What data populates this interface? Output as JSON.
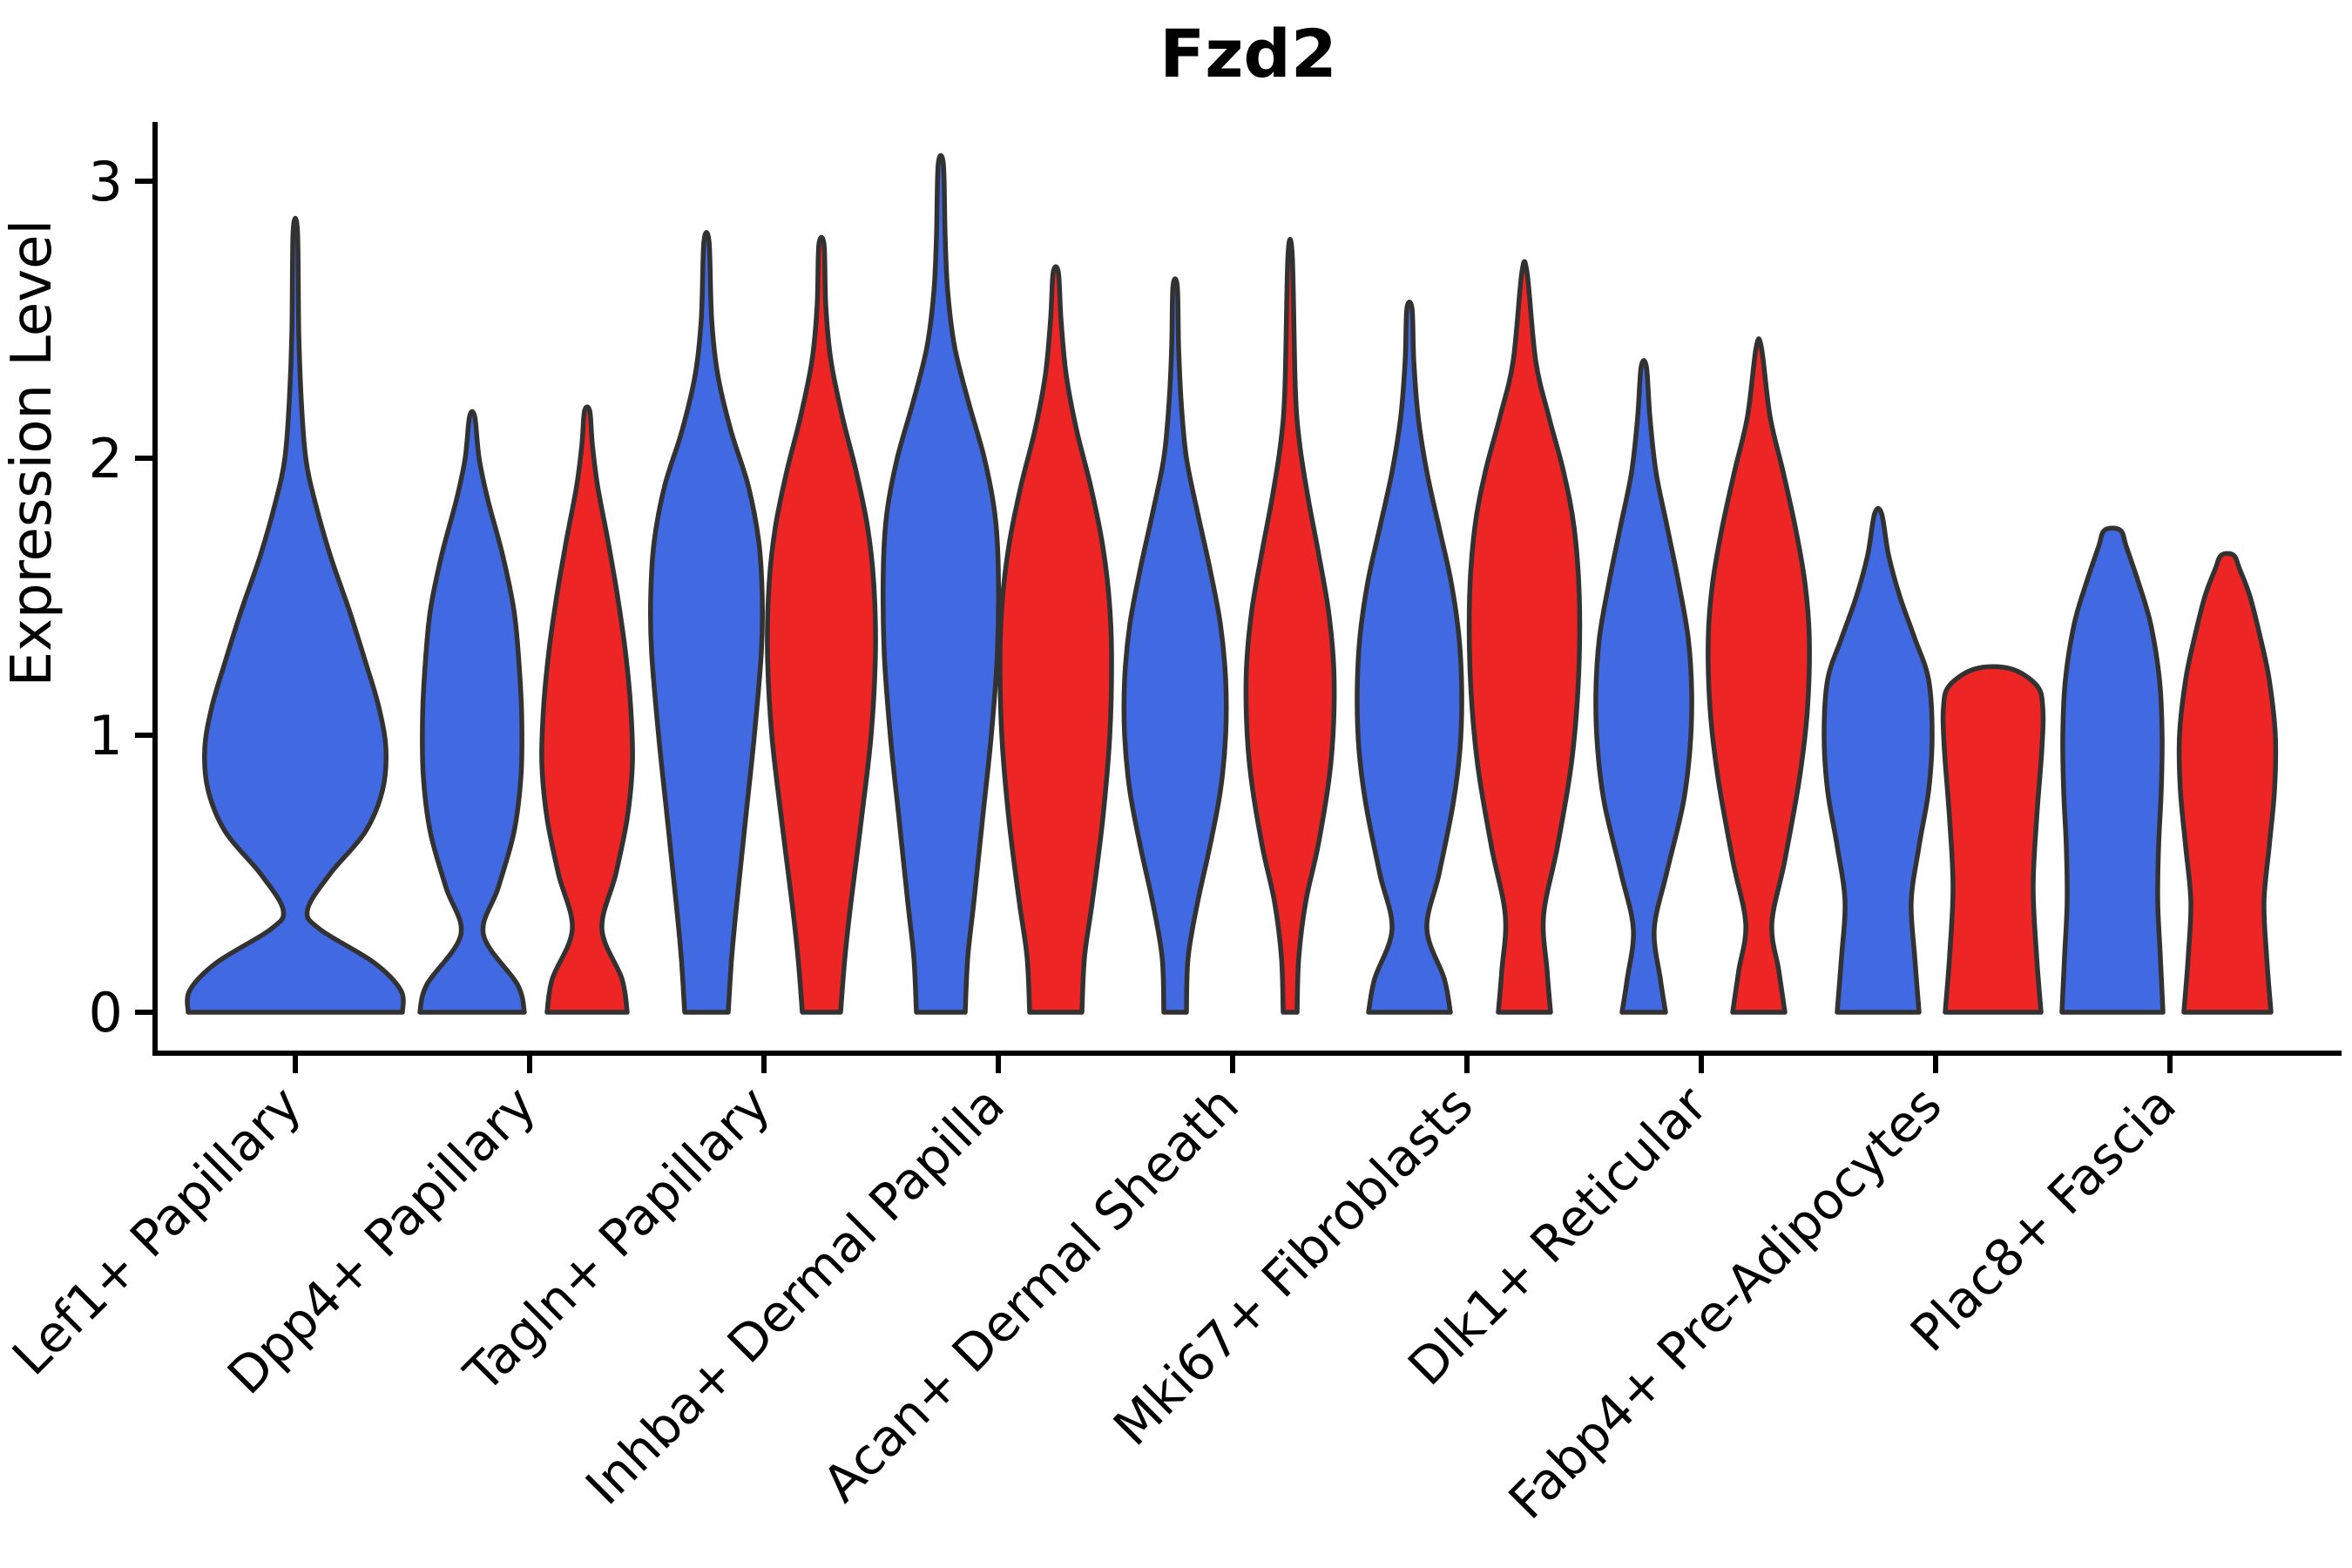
{
  "chart_data": {
    "type": "violin",
    "title": "Fzd2",
    "ylabel": "Expression Level",
    "xlabel": "",
    "ylim": [
      0,
      3.3
    ],
    "yticks": [
      0,
      1,
      2,
      3
    ],
    "y_tick_labels": [
      "0",
      "1",
      "2",
      "3"
    ],
    "x_tick_rotation_deg": 45,
    "grid": false,
    "legend": "none",
    "categories": [
      "Lef1+ Papillary",
      "Dpp4+ Papillary",
      "Tagln+ Papillary",
      "Inhba+ Dermal Papilla",
      "Acan+ Dermal Sheath",
      "Mki67+ Fibroblasts",
      "Dlk1+ Reticular",
      "Fabp4+ Pre-Adipocytes",
      "Plac8+ Fascia"
    ],
    "palette": {
      "blue": "#4169E1",
      "red": "#ED2524",
      "outline": "#323232"
    },
    "violins": [
      {
        "category_index": 0,
        "category": "Lef1+ Papillary",
        "color": "blue",
        "side": "center",
        "peak_expression": 2.82,
        "flat_top": false,
        "profile": [
          [
            0,
            123
          ],
          [
            0.08,
            121
          ],
          [
            0.18,
            90
          ],
          [
            0.3,
            28
          ],
          [
            0.37,
            14
          ],
          [
            0.5,
            40
          ],
          [
            0.65,
            80
          ],
          [
            0.8,
            100
          ],
          [
            0.95,
            104
          ],
          [
            1.1,
            96
          ],
          [
            1.25,
            82
          ],
          [
            1.45,
            62
          ],
          [
            1.65,
            40
          ],
          [
            1.85,
            22
          ],
          [
            2.0,
            12
          ],
          [
            2.2,
            7
          ],
          [
            2.45,
            4
          ],
          [
            2.82,
            2.5
          ]
        ]
      },
      {
        "category_index": 1,
        "category": "Dpp4+ Papillary",
        "color": "blue",
        "side": "left",
        "peak_expression": 2.15,
        "flat_top": false,
        "profile": [
          [
            0,
            60
          ],
          [
            0.1,
            52
          ],
          [
            0.28,
            13
          ],
          [
            0.45,
            30
          ],
          [
            0.65,
            48
          ],
          [
            0.85,
            56
          ],
          [
            1.05,
            57
          ],
          [
            1.25,
            54
          ],
          [
            1.45,
            48
          ],
          [
            1.65,
            35
          ],
          [
            1.85,
            18
          ],
          [
            2.0,
            8
          ],
          [
            2.15,
            3
          ]
        ]
      },
      {
        "category_index": 1,
        "category": "Dpp4+ Papillary",
        "color": "red",
        "side": "right",
        "peak_expression": 2.17,
        "flat_top": false,
        "profile": [
          [
            0,
            46
          ],
          [
            0.12,
            40
          ],
          [
            0.3,
            17
          ],
          [
            0.5,
            33
          ],
          [
            0.7,
            46
          ],
          [
            0.9,
            52
          ],
          [
            1.1,
            50
          ],
          [
            1.3,
            44
          ],
          [
            1.5,
            35
          ],
          [
            1.7,
            24
          ],
          [
            1.9,
            12
          ],
          [
            2.05,
            6
          ],
          [
            2.17,
            3
          ]
        ]
      },
      {
        "category_index": 2,
        "category": "Tagln+ Papillary",
        "color": "blue",
        "side": "left",
        "peak_expression": 2.78,
        "flat_top": false,
        "profile": [
          [
            0,
            25
          ],
          [
            0.2,
            29
          ],
          [
            0.4,
            35
          ],
          [
            0.7,
            45
          ],
          [
            1.0,
            55
          ],
          [
            1.3,
            63
          ],
          [
            1.5,
            64
          ],
          [
            1.7,
            60
          ],
          [
            1.9,
            48
          ],
          [
            2.1,
            28
          ],
          [
            2.3,
            13
          ],
          [
            2.5,
            6
          ],
          [
            2.78,
            3
          ]
        ]
      },
      {
        "category_index": 2,
        "category": "Tagln+ Papillary",
        "color": "red",
        "side": "right",
        "peak_expression": 2.77,
        "flat_top": false,
        "profile": [
          [
            0,
            22
          ],
          [
            0.2,
            27
          ],
          [
            0.4,
            34
          ],
          [
            0.7,
            46
          ],
          [
            1.0,
            57
          ],
          [
            1.3,
            62
          ],
          [
            1.55,
            60
          ],
          [
            1.75,
            53
          ],
          [
            1.95,
            40
          ],
          [
            2.15,
            24
          ],
          [
            2.35,
            11
          ],
          [
            2.55,
            5
          ],
          [
            2.77,
            3
          ]
        ]
      },
      {
        "category_index": 3,
        "category": "Inhba+ Dermal Papilla",
        "color": "blue",
        "side": "left",
        "peak_expression": 3.06,
        "flat_top": false,
        "profile": [
          [
            0,
            28
          ],
          [
            0.2,
            31
          ],
          [
            0.4,
            38
          ],
          [
            0.7,
            48
          ],
          [
            1.0,
            58
          ],
          [
            1.3,
            65
          ],
          [
            1.6,
            66
          ],
          [
            1.8,
            62
          ],
          [
            2.0,
            50
          ],
          [
            2.2,
            32
          ],
          [
            2.4,
            16
          ],
          [
            2.6,
            8
          ],
          [
            2.8,
            5
          ],
          [
            3.06,
            3
          ]
        ]
      },
      {
        "category_index": 3,
        "category": "Inhba+ Dermal Papilla",
        "color": "red",
        "side": "right",
        "peak_expression": 2.67,
        "flat_top": false,
        "profile": [
          [
            0,
            30
          ],
          [
            0.2,
            33
          ],
          [
            0.4,
            42
          ],
          [
            0.7,
            54
          ],
          [
            1.0,
            62
          ],
          [
            1.3,
            64
          ],
          [
            1.5,
            61
          ],
          [
            1.7,
            53
          ],
          [
            1.9,
            40
          ],
          [
            2.1,
            24
          ],
          [
            2.3,
            12
          ],
          [
            2.5,
            6
          ],
          [
            2.67,
            3
          ]
        ]
      },
      {
        "category_index": 4,
        "category": "Acan+ Dermal Sheath",
        "color": "blue",
        "side": "left",
        "peak_expression": 2.62,
        "flat_top": false,
        "profile": [
          [
            0,
            13
          ],
          [
            0.2,
            15
          ],
          [
            0.4,
            26
          ],
          [
            0.6,
            40
          ],
          [
            0.8,
            52
          ],
          [
            1.0,
            58
          ],
          [
            1.2,
            58
          ],
          [
            1.4,
            52
          ],
          [
            1.6,
            40
          ],
          [
            1.8,
            26
          ],
          [
            2.0,
            13
          ],
          [
            2.2,
            7
          ],
          [
            2.4,
            4
          ],
          [
            2.62,
            2.5
          ]
        ]
      },
      {
        "category_index": 4,
        "category": "Acan+ Dermal Sheath",
        "color": "red",
        "side": "right",
        "peak_expression": 2.73,
        "flat_top": false,
        "profile": [
          [
            0,
            8
          ],
          [
            0.2,
            10
          ],
          [
            0.4,
            18
          ],
          [
            0.6,
            32
          ],
          [
            0.85,
            45
          ],
          [
            1.05,
            50
          ],
          [
            1.25,
            50
          ],
          [
            1.45,
            44
          ],
          [
            1.65,
            33
          ],
          [
            1.85,
            21
          ],
          [
            2.05,
            11
          ],
          [
            2.25,
            6
          ],
          [
            2.73,
            2.5
          ]
        ]
      },
      {
        "category_index": 5,
        "category": "Mki67+ Fibroblasts",
        "color": "blue",
        "side": "left",
        "peak_expression": 2.54,
        "flat_top": false,
        "profile": [
          [
            0,
            47
          ],
          [
            0.12,
            40
          ],
          [
            0.3,
            20
          ],
          [
            0.5,
            34
          ],
          [
            0.75,
            50
          ],
          [
            0.95,
            58
          ],
          [
            1.15,
            60
          ],
          [
            1.35,
            57
          ],
          [
            1.55,
            48
          ],
          [
            1.75,
            34
          ],
          [
            1.95,
            20
          ],
          [
            2.15,
            10
          ],
          [
            2.35,
            5
          ],
          [
            2.54,
            3
          ]
        ]
      },
      {
        "category_index": 5,
        "category": "Mki67+ Fibroblasts",
        "color": "red",
        "side": "right",
        "peak_expression": 2.67,
        "flat_top": false,
        "profile": [
          [
            0,
            30
          ],
          [
            0.15,
            26
          ],
          [
            0.35,
            22
          ],
          [
            0.6,
            38
          ],
          [
            0.9,
            54
          ],
          [
            1.2,
            62
          ],
          [
            1.5,
            63
          ],
          [
            1.75,
            57
          ],
          [
            1.95,
            45
          ],
          [
            2.15,
            28
          ],
          [
            2.35,
            13
          ],
          [
            2.67,
            3
          ]
        ]
      },
      {
        "category_index": 6,
        "category": "Dlk1+ Reticular",
        "color": "blue",
        "side": "left",
        "peak_expression": 2.33,
        "flat_top": false,
        "profile": [
          [
            0,
            25
          ],
          [
            0.12,
            19
          ],
          [
            0.3,
            12
          ],
          [
            0.5,
            26
          ],
          [
            0.75,
            45
          ],
          [
            0.95,
            53
          ],
          [
            1.15,
            55
          ],
          [
            1.35,
            51
          ],
          [
            1.55,
            40
          ],
          [
            1.75,
            27
          ],
          [
            1.95,
            14
          ],
          [
            2.15,
            7
          ],
          [
            2.33,
            3
          ]
        ]
      },
      {
        "category_index": 6,
        "category": "Dlk1+ Reticular",
        "color": "red",
        "side": "right",
        "peak_expression": 2.4,
        "flat_top": false,
        "profile": [
          [
            0,
            30
          ],
          [
            0.15,
            23
          ],
          [
            0.32,
            15
          ],
          [
            0.55,
            30
          ],
          [
            0.85,
            47
          ],
          [
            1.1,
            56
          ],
          [
            1.35,
            58
          ],
          [
            1.55,
            53
          ],
          [
            1.75,
            42
          ],
          [
            1.95,
            28
          ],
          [
            2.15,
            13
          ],
          [
            2.4,
            3
          ]
        ]
      },
      {
        "category_index": 7,
        "category": "Fabp4+ Pre-Adipocytes",
        "color": "blue",
        "side": "left",
        "peak_expression": 1.8,
        "flat_top": false,
        "profile": [
          [
            0,
            47
          ],
          [
            0.2,
            42
          ],
          [
            0.4,
            38
          ],
          [
            0.6,
            47
          ],
          [
            0.8,
            58
          ],
          [
            1.0,
            62
          ],
          [
            1.2,
            58
          ],
          [
            1.35,
            42
          ],
          [
            1.5,
            25
          ],
          [
            1.65,
            12
          ],
          [
            1.8,
            4
          ]
        ]
      },
      {
        "category_index": 7,
        "category": "Fabp4+ Pre-Adipocytes",
        "color": "red",
        "side": "right",
        "peak_expression": 1.24,
        "flat_top": true,
        "profile": [
          [
            0,
            55
          ],
          [
            0.2,
            50
          ],
          [
            0.45,
            46
          ],
          [
            0.7,
            50
          ],
          [
            0.95,
            56
          ],
          [
            1.1,
            57
          ],
          [
            1.18,
            50
          ],
          [
            1.24,
            20
          ]
        ]
      },
      {
        "category_index": 8,
        "category": "Plac8+ Fascia",
        "color": "blue",
        "side": "left",
        "peak_expression": 1.74,
        "flat_top": true,
        "profile": [
          [
            0,
            58
          ],
          [
            0.2,
            55
          ],
          [
            0.4,
            52
          ],
          [
            0.6,
            53
          ],
          [
            0.8,
            56
          ],
          [
            1.0,
            57
          ],
          [
            1.2,
            54
          ],
          [
            1.4,
            44
          ],
          [
            1.55,
            30
          ],
          [
            1.68,
            16
          ],
          [
            1.74,
            9
          ]
        ]
      },
      {
        "category_index": 8,
        "category": "Plac8+ Fascia",
        "color": "red",
        "side": "right",
        "peak_expression": 1.65,
        "flat_top": false,
        "profile": [
          [
            0,
            50
          ],
          [
            0.2,
            45
          ],
          [
            0.4,
            42
          ],
          [
            0.6,
            48
          ],
          [
            0.8,
            54
          ],
          [
            1.0,
            55
          ],
          [
            1.2,
            48
          ],
          [
            1.35,
            38
          ],
          [
            1.5,
            26
          ],
          [
            1.6,
            14
          ],
          [
            1.65,
            7
          ]
        ]
      }
    ]
  }
}
